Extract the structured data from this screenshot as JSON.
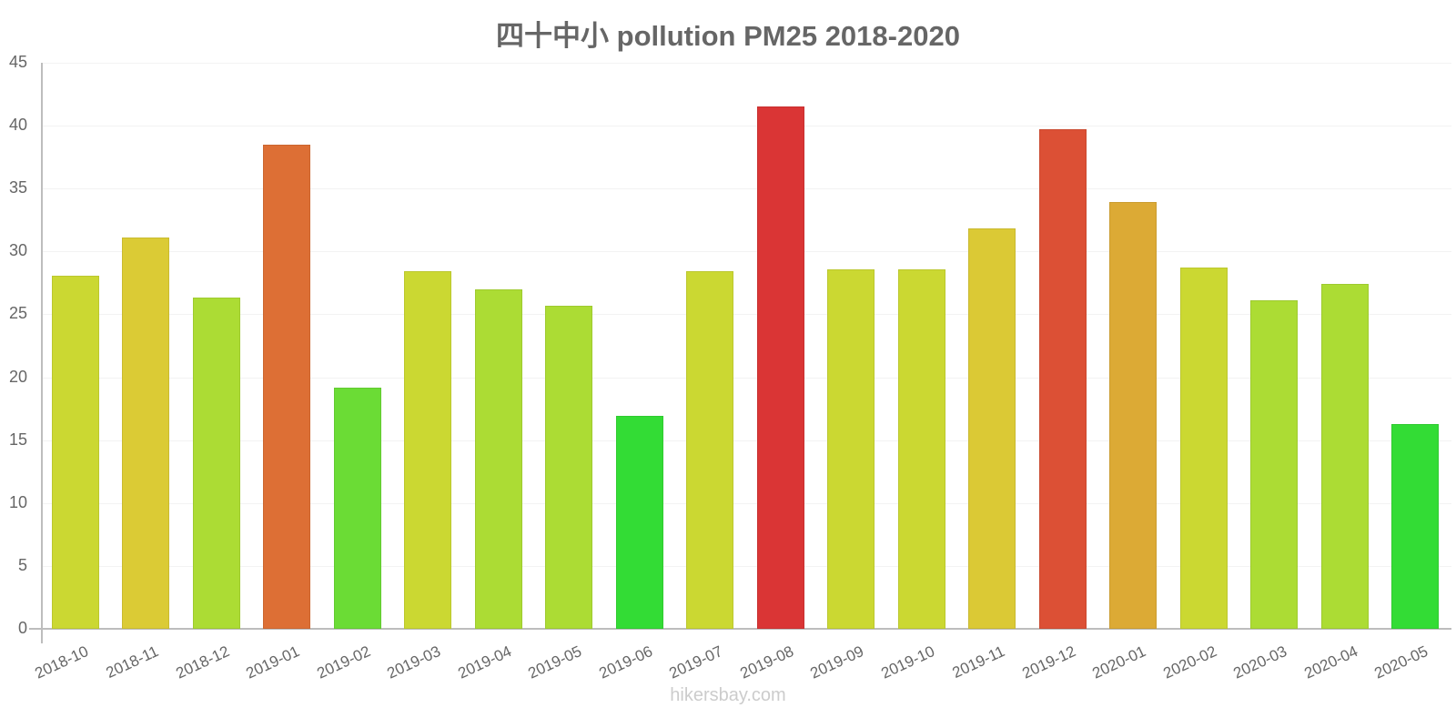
{
  "title": "四十中小 pollution PM25 2018-2020",
  "footer": "hikersbay.com",
  "y_ticks": [
    "0",
    "5",
    "10",
    "15",
    "20",
    "25",
    "30",
    "35",
    "40",
    "45"
  ],
  "chart_data": {
    "type": "bar",
    "title": "四十中小 pollution PM25 2018-2020",
    "xlabel": "",
    "ylabel": "",
    "ylim": [
      0,
      45
    ],
    "grid": true,
    "legend": null,
    "categories": [
      "2018-10",
      "2018-11",
      "2018-12",
      "2019-01",
      "2019-02",
      "2019-03",
      "2019-04",
      "2019-05",
      "2019-06",
      "2019-07",
      "2019-08",
      "2019-09",
      "2019-10",
      "2019-11",
      "2019-12",
      "2020-01",
      "2020-02",
      "2020-03",
      "2020-04",
      "2020-05"
    ],
    "values": [
      28.1,
      31.1,
      26.3,
      38.5,
      19.2,
      28.4,
      27.0,
      25.7,
      16.9,
      28.4,
      41.5,
      28.6,
      28.6,
      31.8,
      39.7,
      33.9,
      28.7,
      26.1,
      27.4,
      16.3
    ],
    "colors": [
      "#cbd832",
      "#dbcb35",
      "#acdc34",
      "#dd6f35",
      "#6bdc35",
      "#cbd832",
      "#acdc34",
      "#acdc34",
      "#33dc35",
      "#cbd832",
      "#da3535",
      "#cbd832",
      "#cbd832",
      "#dbc935",
      "#dc5035",
      "#dcaa35",
      "#cbd832",
      "#acdc34",
      "#acdc34",
      "#33dc35"
    ],
    "source": "hikersbay.com"
  }
}
